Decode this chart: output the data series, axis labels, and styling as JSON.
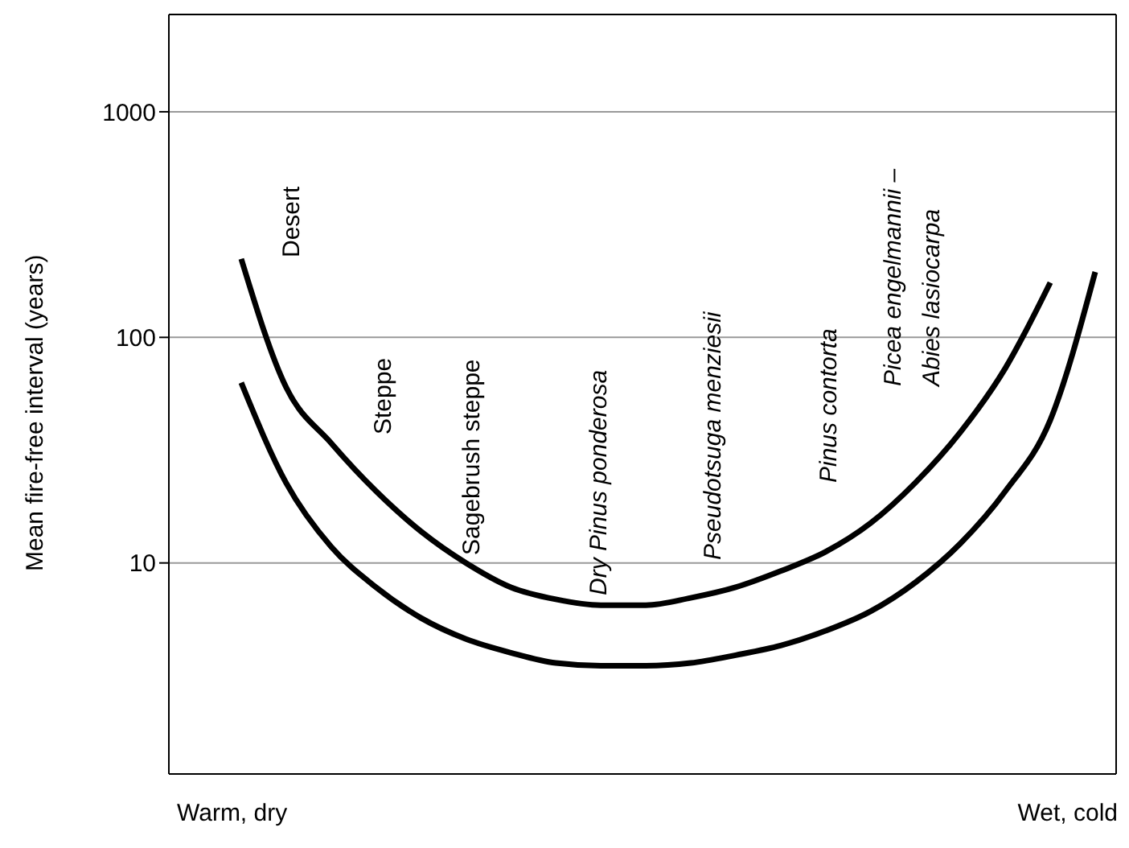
{
  "chart_data": {
    "type": "line",
    "ylabel": "Mean fire-free interval (years)",
    "log": "y",
    "ylim": [
      1.16,
      2700
    ],
    "yticks": [
      10,
      100,
      1000
    ],
    "grid": "y",
    "tick_labels": "y",
    "categories": [
      null,
      null,
      null,
      null,
      null,
      null,
      null,
      null,
      null,
      null,
      null,
      null,
      null,
      null,
      null,
      null,
      null,
      null,
      null,
      null
    ],
    "series": [
      {
        "color": "#000000",
        "values": [
          223,
          60,
          34,
          20.8,
          13.8,
          10,
          7.8,
          6.9,
          6.5,
          6.5,
          7,
          7.8,
          9.2,
          11.2,
          15,
          22.7,
          38,
          73,
          175,
          null
        ]
      },
      {
        "color": "#000000",
        "values": [
          63,
          22.6,
          11.8,
          7.8,
          5.7,
          4.6,
          4.0,
          3.6,
          3.5,
          3.5,
          3.6,
          3.9,
          4.3,
          5.0,
          6.1,
          8.2,
          12.2,
          20.8,
          43,
          195
        ]
      }
    ],
    "annotations": [
      "Desert",
      "Steppe",
      "Sagebrush steppe",
      "Dry Pinus ponderosa",
      "Pseudotsuga menziesii",
      "Pinus contorta",
      "Picea engelmannii –\nAbies lasiocarpa",
      "Warm, dry",
      "Wet, cold"
    ]
  }
}
